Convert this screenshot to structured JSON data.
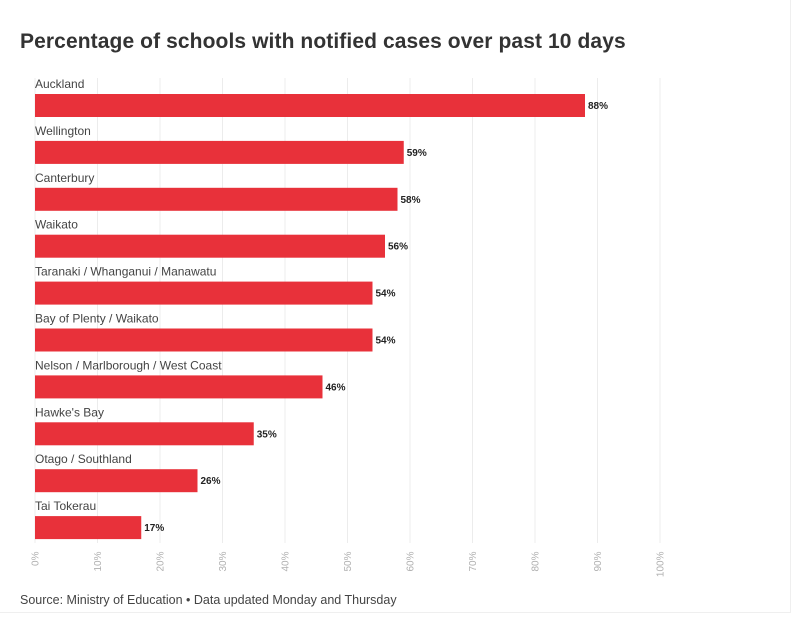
{
  "chart_data": {
    "type": "bar",
    "orientation": "horizontal",
    "title": "Percentage of schools with notified cases over past 10 days",
    "categories": [
      "Auckland",
      "Wellington",
      "Canterbury",
      "Waikato",
      "Taranaki / Whanganui / Manawatu",
      "Bay of Plenty / Waikato",
      "Nelson / Marlborough / West Coast",
      "Hawke's Bay",
      "Otago / Southland",
      "Tai Tokerau"
    ],
    "values": [
      88,
      59,
      58,
      56,
      54,
      54,
      46,
      35,
      26,
      17
    ],
    "value_labels": [
      "88%",
      "59%",
      "58%",
      "56%",
      "54%",
      "54%",
      "46%",
      "35%",
      "26%",
      "17%"
    ],
    "xlim": [
      0,
      100
    ],
    "xticks": [
      0,
      10,
      20,
      30,
      40,
      50,
      60,
      70,
      80,
      90,
      100
    ],
    "xtick_labels": [
      "0%",
      "10%",
      "20%",
      "30%",
      "40%",
      "50%",
      "60%",
      "70%",
      "80%",
      "90%",
      "100%"
    ],
    "bar_color": "#e8313a",
    "grid": true,
    "legend": "none"
  },
  "footer": {
    "source": "Source: Ministry of Education • Data updated Monday and Thursday"
  }
}
